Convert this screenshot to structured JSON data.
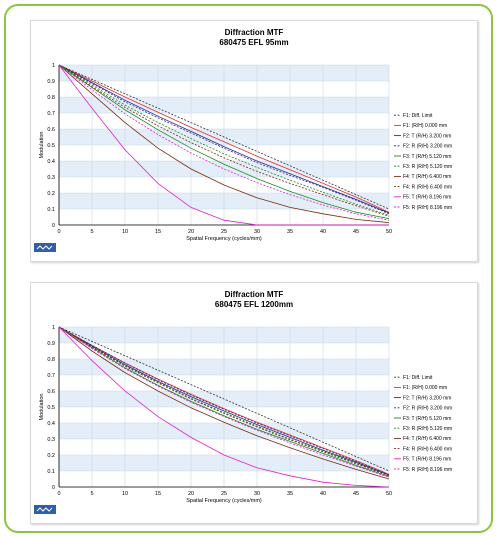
{
  "colors": {
    "frame": "#8cc63f",
    "band": "#e4eef9",
    "grid": "#c9d7e8",
    "logo": "#2e5fa8"
  },
  "chart_data": [
    {
      "type": "line",
      "title": "Diffraction MTF",
      "subtitle": "680475    EFL 95mm",
      "xlabel": "Spatial Frequency (cycles/mm)",
      "ylabel": "Modulation",
      "xlim": [
        0,
        50
      ],
      "ylim": [
        0,
        1
      ],
      "xticks": [
        0,
        5,
        10,
        15,
        20,
        25,
        30,
        35,
        40,
        45,
        50
      ],
      "yticks": [
        0,
        0.1,
        0.2,
        0.3,
        0.4,
        0.5,
        0.6,
        0.7,
        0.8,
        0.9,
        1
      ],
      "grid": true,
      "legend_position": "right",
      "x": [
        0,
        5,
        10,
        15,
        20,
        25,
        30,
        35,
        40,
        45,
        50
      ],
      "series": [
        {
          "name": "F1: Diff. Limit",
          "color": "#333333",
          "dashed": true,
          "values": [
            1.0,
            0.91,
            0.82,
            0.73,
            0.64,
            0.55,
            0.46,
            0.37,
            0.28,
            0.19,
            0.1
          ]
        },
        {
          "name": "F1: (R/H) 0.000 mm",
          "color": "#e03030",
          "dashed": false,
          "values": [
            1.0,
            0.9,
            0.8,
            0.705,
            0.61,
            0.52,
            0.43,
            0.345,
            0.26,
            0.175,
            0.08
          ]
        },
        {
          "name": "F2: T (R/H) 3.200 mm",
          "color": "#2a2a8c",
          "dashed": false,
          "values": [
            1.0,
            0.89,
            0.78,
            0.68,
            0.585,
            0.49,
            0.4,
            0.32,
            0.24,
            0.16,
            0.075
          ]
        },
        {
          "name": "F2: R (R/H) 3.200 mm",
          "color": "#2a2a8c",
          "dashed": true,
          "values": [
            1.0,
            0.885,
            0.77,
            0.67,
            0.575,
            0.48,
            0.39,
            0.31,
            0.235,
            0.155,
            0.07
          ]
        },
        {
          "name": "F3: T (R/H) 5.120 mm",
          "color": "#1b8a1b",
          "dashed": false,
          "values": [
            1.0,
            0.86,
            0.72,
            0.595,
            0.48,
            0.38,
            0.29,
            0.21,
            0.14,
            0.08,
            0.04
          ]
        },
        {
          "name": "F3: R (R/H) 5.120 mm",
          "color": "#1b8a1b",
          "dashed": true,
          "values": [
            1.0,
            0.875,
            0.75,
            0.64,
            0.54,
            0.445,
            0.36,
            0.28,
            0.205,
            0.13,
            0.06
          ]
        },
        {
          "name": "F4: T (R/H) 6.400 mm",
          "color": "#7a2a12",
          "dashed": false,
          "values": [
            1.0,
            0.82,
            0.64,
            0.48,
            0.35,
            0.25,
            0.17,
            0.11,
            0.07,
            0.035,
            0.015
          ]
        },
        {
          "name": "F4: R (R/H) 6.400 mm",
          "color": "#7a2a12",
          "dashed": true,
          "values": [
            1.0,
            0.865,
            0.735,
            0.62,
            0.515,
            0.42,
            0.335,
            0.26,
            0.19,
            0.12,
            0.055
          ]
        },
        {
          "name": "F5: T (R/H) 8.196 mm",
          "color": "#e020d0",
          "dashed": false,
          "values": [
            1.0,
            0.73,
            0.47,
            0.26,
            0.11,
            0.03,
            0.0,
            0.0,
            0.0,
            0.0,
            0.0
          ]
        },
        {
          "name": "F5: R (R/H) 8.196 mm",
          "color": "#e020d0",
          "dashed": true,
          "values": [
            1.0,
            0.845,
            0.695,
            0.565,
            0.45,
            0.35,
            0.265,
            0.19,
            0.125,
            0.07,
            0.03
          ]
        }
      ]
    },
    {
      "type": "line",
      "title": "Diffraction MTF",
      "subtitle": "680475    EFL 1200mm",
      "xlabel": "Spatial Frequency (cycles/mm)",
      "ylabel": "Modulation",
      "xlim": [
        0,
        50
      ],
      "ylim": [
        0,
        1
      ],
      "xticks": [
        0,
        5,
        10,
        15,
        20,
        25,
        30,
        35,
        40,
        45,
        50
      ],
      "yticks": [
        0,
        0.1,
        0.2,
        0.3,
        0.4,
        0.5,
        0.6,
        0.7,
        0.8,
        0.9,
        1
      ],
      "grid": true,
      "legend_position": "right",
      "x": [
        0,
        5,
        10,
        15,
        20,
        25,
        30,
        35,
        40,
        45,
        50
      ],
      "series": [
        {
          "name": "F1: Diff. Limit",
          "color": "#333333",
          "dashed": true,
          "values": [
            1.0,
            0.91,
            0.82,
            0.73,
            0.64,
            0.55,
            0.46,
            0.37,
            0.28,
            0.19,
            0.1
          ]
        },
        {
          "name": "F1: (R/H) 0.000 mm",
          "color": "#e03030",
          "dashed": false,
          "values": [
            1.0,
            0.885,
            0.775,
            0.675,
            0.58,
            0.49,
            0.405,
            0.325,
            0.245,
            0.165,
            0.08
          ]
        },
        {
          "name": "F2: T (R/H) 3.200 mm",
          "color": "#2a2a8c",
          "dashed": false,
          "values": [
            1.0,
            0.88,
            0.765,
            0.66,
            0.565,
            0.475,
            0.39,
            0.31,
            0.23,
            0.155,
            0.075
          ]
        },
        {
          "name": "F2: R (R/H) 3.200 mm",
          "color": "#2a2a8c",
          "dashed": true,
          "values": [
            1.0,
            0.885,
            0.775,
            0.67,
            0.575,
            0.485,
            0.4,
            0.32,
            0.24,
            0.16,
            0.075
          ]
        },
        {
          "name": "F3: T (R/H) 5.120 mm",
          "color": "#1b8a1b",
          "dashed": false,
          "values": [
            1.0,
            0.87,
            0.745,
            0.635,
            0.535,
            0.445,
            0.36,
            0.285,
            0.21,
            0.135,
            0.065
          ]
        },
        {
          "name": "F3: R (R/H) 5.120 mm",
          "color": "#1b8a1b",
          "dashed": true,
          "values": [
            1.0,
            0.875,
            0.76,
            0.655,
            0.555,
            0.465,
            0.38,
            0.3,
            0.225,
            0.15,
            0.07
          ]
        },
        {
          "name": "F4: T (R/H) 6.400 mm",
          "color": "#7a2a12",
          "dashed": false,
          "values": [
            1.0,
            0.85,
            0.715,
            0.6,
            0.495,
            0.405,
            0.32,
            0.245,
            0.175,
            0.11,
            0.05
          ]
        },
        {
          "name": "F4: R (R/H) 6.400 mm",
          "color": "#7a2a12",
          "dashed": true,
          "values": [
            1.0,
            0.875,
            0.755,
            0.65,
            0.55,
            0.46,
            0.375,
            0.295,
            0.22,
            0.145,
            0.07
          ]
        },
        {
          "name": "F5: T (R/H) 8.196 mm",
          "color": "#e020d0",
          "dashed": false,
          "values": [
            1.0,
            0.79,
            0.6,
            0.44,
            0.31,
            0.2,
            0.12,
            0.07,
            0.03,
            0.01,
            0.0
          ]
        },
        {
          "name": "F5: R (R/H) 8.196 mm",
          "color": "#e020d0",
          "dashed": true,
          "values": [
            1.0,
            0.865,
            0.74,
            0.63,
            0.53,
            0.44,
            0.355,
            0.275,
            0.2,
            0.13,
            0.06
          ]
        }
      ]
    }
  ]
}
